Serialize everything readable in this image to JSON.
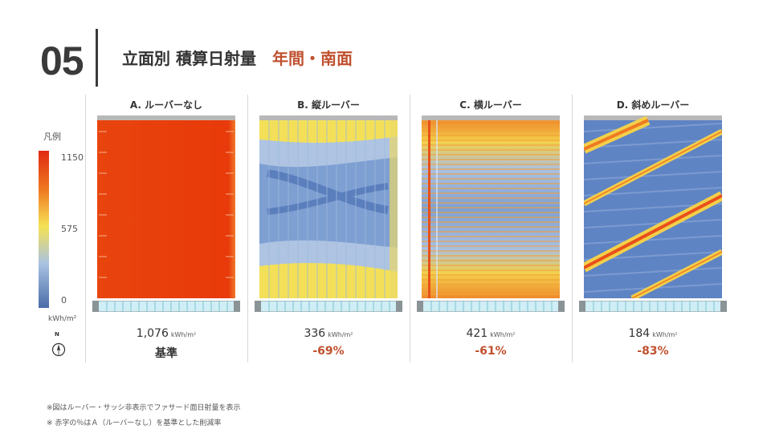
{
  "header": {
    "number": "05",
    "title": "立面別 積算日射量",
    "subtitle": "年間・南面"
  },
  "legend": {
    "title": "凡例",
    "max": "1150",
    "mid": "575",
    "min": "0",
    "unit": "kWh/m²",
    "compass_label": "N",
    "compass_icon": "north-compass-icon",
    "gradient": [
      "#e02a10",
      "#ef7a22",
      "#f5e254",
      "#a9c2e3",
      "#4a6da8"
    ]
  },
  "panels": [
    {
      "label": "A. ルーバーなし",
      "value": "1,076",
      "unit": "kWh/m²",
      "change": "基準",
      "change_color": "#333333"
    },
    {
      "label": "B. 縦ルーバー",
      "value": "336",
      "unit": "kWh/m²",
      "change": "-69%",
      "change_color": "#c0502e"
    },
    {
      "label": "C. 横ルーバー",
      "value": "421",
      "unit": "kWh/m²",
      "change": "-61%",
      "change_color": "#c0502e"
    },
    {
      "label": "D. 斜めルーバー",
      "value": "184",
      "unit": "kWh/m²",
      "change": "-83%",
      "change_color": "#c0502e"
    }
  ],
  "notes": [
    "※図はルーバー・サッシ非表示でファサード面日射量を表示",
    "※ 赤字の％はＡ（ルーバーなし）を基準とした削減率"
  ]
}
